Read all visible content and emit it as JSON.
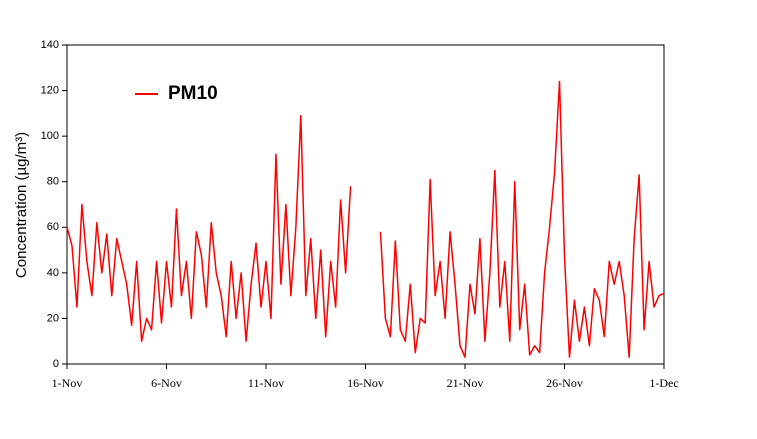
{
  "chart_data": {
    "type": "line",
    "ylabel": "Concentration (µg/m³)",
    "xlim": [
      0,
      30
    ],
    "xticks": [
      {
        "value": 0,
        "label": "1-Nov"
      },
      {
        "value": 5,
        "label": "6-Nov"
      },
      {
        "value": 10,
        "label": "11-Nov"
      },
      {
        "value": 15,
        "label": "16-Nov"
      },
      {
        "value": 20,
        "label": "21-Nov"
      },
      {
        "value": 25,
        "label": "26-Nov"
      },
      {
        "value": 30,
        "label": "1-Dec"
      }
    ],
    "ylim": [
      0,
      140
    ],
    "yticks": [
      0,
      20,
      40,
      60,
      80,
      100,
      120,
      140
    ],
    "grid": false,
    "legend": "upper left",
    "x": [
      0,
      0.25,
      0.5,
      0.75,
      1,
      1.25,
      1.5,
      1.75,
      2,
      2.25,
      2.5,
      2.75,
      3,
      3.25,
      3.5,
      3.75,
      4,
      4.25,
      4.5,
      4.75,
      5,
      5.25,
      5.5,
      5.75,
      6,
      6.25,
      6.5,
      6.75,
      7,
      7.25,
      7.5,
      7.75,
      8,
      8.25,
      8.5,
      8.75,
      9,
      9.25,
      9.5,
      9.75,
      10,
      10.25,
      10.5,
      10.75,
      11,
      11.25,
      11.5,
      11.75,
      12,
      12.25,
      12.5,
      12.75,
      13,
      13.25,
      13.5,
      13.75,
      14,
      14.25,
      14.5,
      14.75,
      15,
      15.25,
      15.5,
      15.75,
      16,
      16.25,
      16.5,
      16.75,
      17,
      17.25,
      17.5,
      17.75,
      18,
      18.25,
      18.5,
      18.75,
      19,
      19.25,
      19.5,
      19.75,
      20,
      20.25,
      20.5,
      20.75,
      21,
      21.25,
      21.5,
      21.75,
      22,
      22.25,
      22.5,
      22.75,
      23,
      23.25,
      23.5,
      23.75,
      24,
      24.25,
      24.5,
      24.75,
      25,
      25.25,
      25.5,
      25.75,
      26,
      26.25,
      26.5,
      26.75,
      27,
      27.25,
      27.5,
      27.75,
      28,
      28.25,
      28.5,
      28.75,
      29,
      29.25,
      29.5,
      29.75,
      30
    ],
    "series": [
      {
        "name": "PM10",
        "color": "#ff0000",
        "values": [
          60,
          52,
          25,
          70,
          45,
          30,
          62,
          40,
          57,
          30,
          55,
          45,
          35,
          17,
          45,
          10,
          20,
          15,
          45,
          18,
          45,
          25,
          68,
          30,
          45,
          20,
          58,
          48,
          25,
          62,
          40,
          30,
          12,
          45,
          20,
          40,
          10,
          35,
          53,
          25,
          45,
          20,
          92,
          35,
          70,
          30,
          60,
          109,
          30,
          55,
          20,
          50,
          12,
          45,
          25,
          72,
          40,
          78,
          null,
          null,
          null,
          null,
          null,
          58,
          20,
          12,
          54,
          15,
          10,
          35,
          5,
          20,
          18,
          81,
          30,
          45,
          20,
          58,
          35,
          8,
          3,
          35,
          22,
          55,
          10,
          40,
          85,
          25,
          45,
          10,
          80,
          15,
          35,
          4,
          8,
          5,
          40,
          60,
          84,
          124,
          47,
          3,
          28,
          10,
          25,
          8,
          33,
          28,
          12,
          45,
          35,
          45,
          30,
          3,
          55,
          83,
          15,
          45,
          25,
          30,
          31
        ]
      }
    ]
  }
}
